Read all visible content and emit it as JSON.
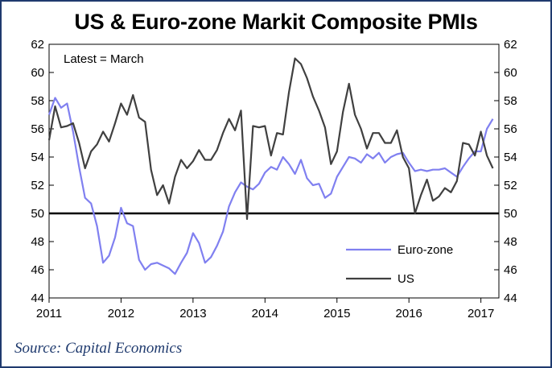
{
  "title": "US & Euro-zone Markit Composite PMIs",
  "source": "Source: Capital Economics",
  "annotation": "Latest = March",
  "colors": {
    "euro": "#8080f0",
    "us": "#404040",
    "frame": "#1f3a6e",
    "refline": "#000000"
  },
  "chart_data": {
    "type": "line",
    "title": "US & Euro-zone Markit Composite PMIs",
    "xlabel": "",
    "ylabel": "",
    "xlim": [
      2011.0,
      2017.25
    ],
    "ylim": [
      44,
      62
    ],
    "y_ticks": [
      44,
      46,
      48,
      50,
      52,
      54,
      56,
      58,
      60,
      62
    ],
    "y_tick_labels": [
      "44",
      "46",
      "48",
      "50",
      "52",
      "54",
      "56",
      "58",
      "60",
      "62"
    ],
    "x_ticks": [
      2011,
      2012,
      2013,
      2014,
      2015,
      2016,
      2017
    ],
    "x_tick_labels": [
      "2011",
      "2012",
      "2013",
      "2014",
      "2015",
      "2016",
      "2017"
    ],
    "reference_line": 50,
    "legend": {
      "position": "bottom-right",
      "entries": [
        "Euro-zone",
        "US"
      ]
    },
    "series": [
      {
        "name": "Euro-zone",
        "start": 2011.0,
        "step": 0.0833333,
        "values": [
          57.0,
          58.2,
          57.5,
          57.8,
          55.8,
          53.3,
          51.1,
          50.7,
          49.1,
          46.5,
          47.0,
          48.3,
          50.4,
          49.3,
          49.1,
          46.7,
          46.0,
          46.4,
          46.5,
          46.3,
          46.1,
          45.7,
          46.5,
          47.2,
          48.6,
          47.9,
          46.5,
          46.9,
          47.7,
          48.7,
          50.5,
          51.5,
          52.2,
          51.9,
          51.7,
          52.1,
          52.9,
          53.3,
          53.1,
          54.0,
          53.5,
          52.8,
          53.8,
          52.5,
          52.0,
          52.1,
          51.1,
          51.4,
          52.6,
          53.3,
          54.0,
          53.9,
          53.6,
          54.2,
          53.9,
          54.3,
          53.6,
          54.0,
          54.2,
          54.3,
          53.6,
          53.0,
          53.1,
          53.0,
          53.1,
          53.1,
          53.2,
          52.9,
          52.6,
          53.3,
          53.9,
          54.4,
          54.4,
          56.0,
          56.7
        ]
      },
      {
        "name": "US",
        "start": 2011.0,
        "step": 0.0833333,
        "values": [
          55.2,
          57.6,
          56.1,
          56.2,
          56.4,
          55.0,
          53.2,
          54.4,
          54.9,
          55.8,
          55.1,
          56.4,
          57.8,
          57.0,
          58.4,
          56.8,
          56.5,
          53.1,
          51.3,
          52.0,
          50.7,
          52.6,
          53.8,
          53.2,
          53.7,
          54.5,
          53.8,
          53.8,
          54.5,
          55.7,
          56.7,
          55.9,
          57.3,
          49.6,
          56.2,
          56.1,
          56.2,
          54.1,
          55.7,
          55.6,
          58.6,
          61.0,
          60.6,
          59.6,
          58.3,
          57.3,
          56.1,
          53.5,
          54.4,
          57.2,
          59.2,
          57.0,
          56.0,
          54.6,
          55.7,
          55.7,
          55.0,
          55.0,
          55.9,
          54.0,
          53.2,
          50.0,
          51.3,
          52.4,
          50.9,
          51.2,
          51.8,
          51.5,
          52.3,
          55.0,
          54.9,
          54.1,
          55.8,
          54.1,
          53.2
        ]
      }
    ]
  }
}
